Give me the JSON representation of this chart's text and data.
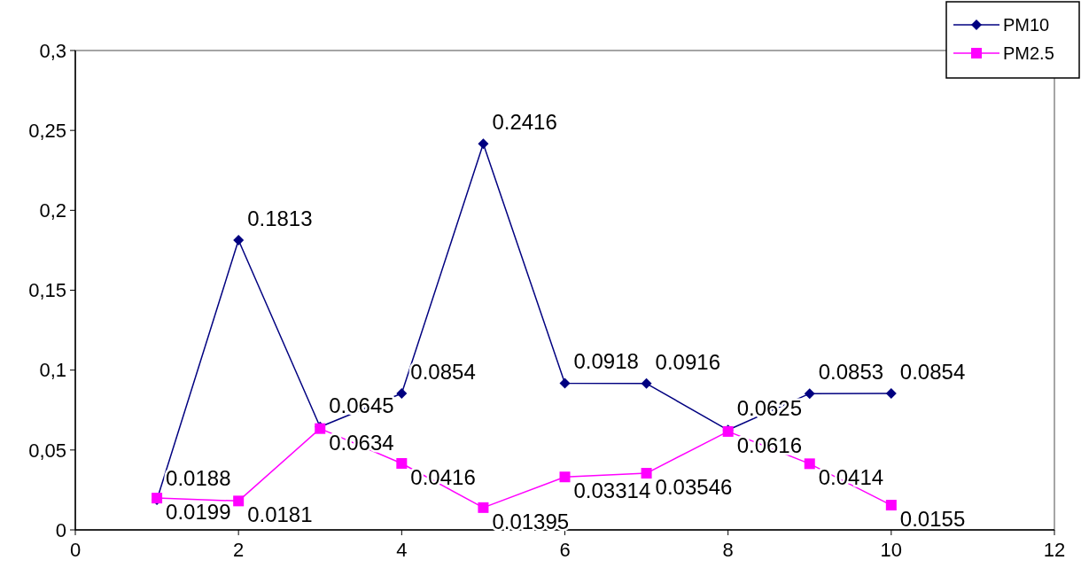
{
  "chart_data": {
    "type": "line",
    "x": [
      1,
      2,
      3,
      4,
      5,
      6,
      7,
      8,
      9,
      10
    ],
    "series": [
      {
        "name": "PM10",
        "color": "#000080",
        "marker": "diamond",
        "values": [
          0.0188,
          0.1813,
          0.0645,
          0.0854,
          0.2416,
          0.0918,
          0.0916,
          0.0625,
          0.0853,
          0.0854
        ]
      },
      {
        "name": "PM2.5",
        "color": "#ff00ff",
        "marker": "square",
        "values": [
          0.0199,
          0.0181,
          0.0634,
          0.0416,
          0.01395,
          0.03314,
          0.03546,
          0.0616,
          0.0414,
          0.0155
        ]
      }
    ],
    "xlim": [
      0,
      12
    ],
    "xticks": [
      0,
      2,
      4,
      6,
      8,
      10,
      12
    ],
    "ylim": [
      0,
      0.3
    ],
    "yticks": [
      {
        "value": 0,
        "label": "0"
      },
      {
        "value": 0.05,
        "label": "0,05"
      },
      {
        "value": 0.1,
        "label": "0,1"
      },
      {
        "value": 0.15,
        "label": "0,15"
      },
      {
        "value": 0.2,
        "label": "0,2"
      },
      {
        "value": 0.25,
        "label": "0,25"
      },
      {
        "value": 0.3,
        "label": "0,3"
      }
    ],
    "data_labels": true,
    "grid": false,
    "legend": "top right"
  }
}
